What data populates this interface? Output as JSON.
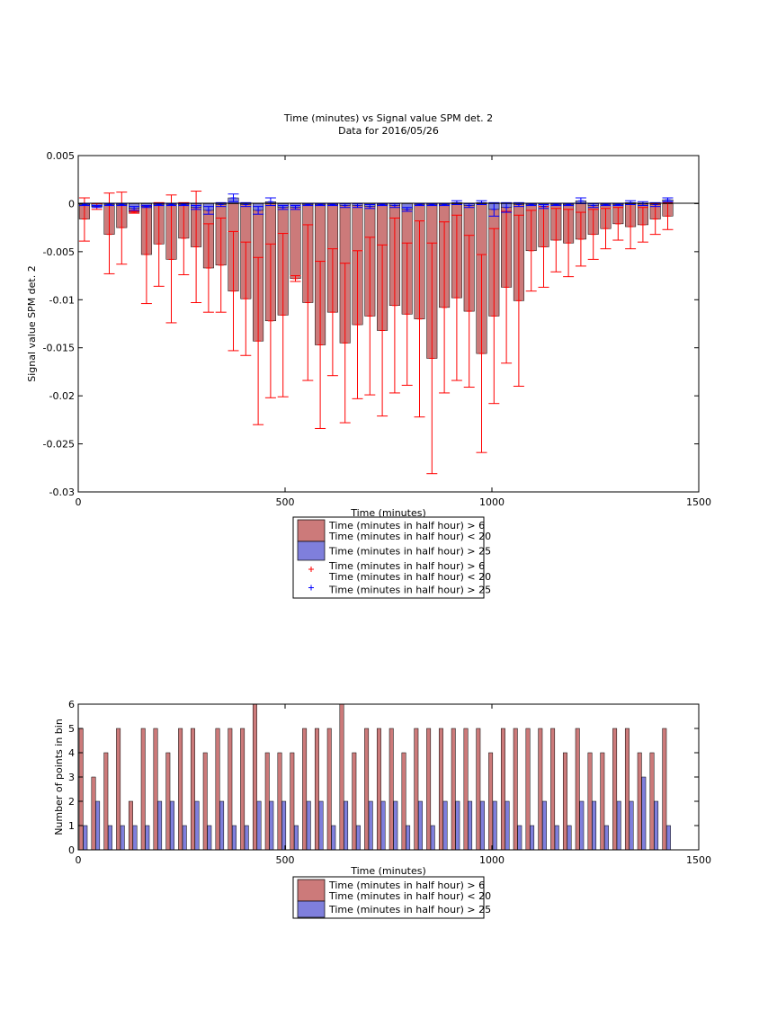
{
  "chart_data": [
    {
      "type": "bar",
      "title": "Time (minutes) vs Signal value SPM det. 2",
      "subtitle": "Data for 2016/05/26",
      "xlabel": "Time (minutes)",
      "ylabel": "Signal value SPM det. 2",
      "xlim": [
        0,
        1500
      ],
      "ylim": [
        -0.03,
        0.005
      ],
      "xticks": [
        0,
        500,
        1000,
        1500
      ],
      "xtick_labels": [
        "0",
        "500",
        "1000",
        "1500"
      ],
      "yticks": [
        0.005,
        0,
        -0.005,
        -0.01,
        -0.015,
        -0.02,
        -0.025,
        -0.03
      ],
      "ytick_labels": [
        "0.005",
        "0",
        "-0.005",
        "-0.01",
        "-0.015",
        "-0.02",
        "-0.025",
        "-0.03"
      ],
      "grid": false,
      "legend_position": "below",
      "legend": [
        {
          "marker": "patch",
          "color": "#cc7a7a",
          "label1": "Time (minutes in half hour) > 6",
          "label2": "Time (minutes in half hour) < 20"
        },
        {
          "marker": "patch",
          "color": "#7f7fdc",
          "label1": "Time (minutes in half hour) > 25",
          "label2": ""
        },
        {
          "marker": "plus",
          "color": "#ff0000",
          "label1": "Time (minutes in half hour) > 6",
          "label2": "Time (minutes in half hour) < 20"
        },
        {
          "marker": "plus",
          "color": "#0000ff",
          "label1": "Time (minutes in half hour) > 25",
          "label2": ""
        }
      ],
      "series": [
        {
          "color": "#cc7a7a",
          "error_color": "#ff0000",
          "x": [
            15,
            45,
            75,
            105,
            135,
            165,
            195,
            225,
            255,
            285,
            315,
            345,
            375,
            405,
            435,
            465,
            495,
            525,
            555,
            585,
            615,
            645,
            675,
            705,
            735,
            765,
            795,
            825,
            855,
            885,
            915,
            945,
            975,
            1005,
            1035,
            1065,
            1095,
            1125,
            1155,
            1185,
            1215,
            1245,
            1275,
            1305,
            1335,
            1365,
            1395,
            1425
          ],
          "values": [
            -0.0016,
            -0.0003,
            -0.0032,
            -0.0025,
            -0.0009,
            -0.0053,
            -0.0042,
            -0.0058,
            -0.0036,
            -0.0045,
            -0.0067,
            -0.0064,
            -0.0091,
            -0.0099,
            -0.0143,
            -0.0122,
            -0.0116,
            -0.0078,
            -0.0103,
            -0.0147,
            -0.0113,
            -0.0145,
            -0.0126,
            -0.0117,
            -0.0132,
            -0.0106,
            -0.0115,
            -0.012,
            -0.0161,
            -0.0108,
            -0.0098,
            -0.0112,
            -0.0156,
            -0.0117,
            -0.0087,
            -0.0101,
            -0.0049,
            -0.0045,
            -0.0038,
            -0.0041,
            -0.0037,
            -0.0032,
            -0.0026,
            -0.0021,
            -0.0024,
            -0.0022,
            -0.0016,
            -0.0013
          ],
          "err_low": [
            -0.0039,
            -0.0006,
            -0.0073,
            -0.0063,
            -0.001,
            -0.0104,
            -0.0086,
            -0.0124,
            -0.0074,
            -0.0103,
            -0.0113,
            -0.0113,
            -0.0153,
            -0.0158,
            -0.023,
            -0.0202,
            -0.0201,
            -0.0081,
            -0.0184,
            -0.0234,
            -0.0179,
            -0.0228,
            -0.0203,
            -0.0199,
            -0.0221,
            -0.0197,
            -0.0189,
            -0.0222,
            -0.0281,
            -0.0197,
            -0.0184,
            -0.0191,
            -0.0259,
            -0.0208,
            -0.0166,
            -0.019,
            -0.0091,
            -0.0087,
            -0.0071,
            -0.0076,
            -0.0065,
            -0.0058,
            -0.0047,
            -0.0038,
            -0.0047,
            -0.004,
            -0.0032,
            -0.0027
          ],
          "err_high": [
            0.0006,
            0.0,
            0.0011,
            0.0012,
            -0.0008,
            -0.0002,
            0.0001,
            0.0009,
            0.0001,
            0.0013,
            -0.0021,
            -0.0015,
            -0.0029,
            -0.004,
            -0.0056,
            -0.0042,
            -0.0031,
            -0.0075,
            -0.0022,
            -0.006,
            -0.0047,
            -0.0062,
            -0.0049,
            -0.0035,
            -0.0043,
            -0.0015,
            -0.0041,
            -0.0018,
            -0.0041,
            -0.0019,
            -0.0012,
            -0.0033,
            -0.0053,
            -0.0026,
            -0.0008,
            -0.0012,
            -0.0007,
            -0.0003,
            -0.0005,
            -0.0006,
            -0.0009,
            -0.0006,
            -0.0005,
            -0.0004,
            -0.0001,
            -0.0004,
            -0.0,
            0.0001
          ]
        },
        {
          "color": "#7f7fdc",
          "error_color": "#0000ff",
          "x": [
            15,
            45,
            75,
            105,
            135,
            165,
            195,
            225,
            255,
            285,
            315,
            345,
            375,
            405,
            435,
            465,
            495,
            525,
            555,
            585,
            615,
            645,
            675,
            705,
            735,
            765,
            795,
            825,
            855,
            885,
            915,
            945,
            975,
            1005,
            1035,
            1065,
            1095,
            1125,
            1155,
            1185,
            1215,
            1245,
            1275,
            1305,
            1335,
            1365,
            1395,
            1425
          ],
          "values": [
            -0.0001,
            -0.0003,
            -0.0001,
            -0.0001,
            -0.0005,
            -0.0003,
            -0.0001,
            -0.0001,
            -0.0001,
            -0.0004,
            -0.0007,
            -0.0001,
            0.0006,
            -0.0001,
            -0.0007,
            0.0002,
            -0.0004,
            -0.0004,
            -0.0001,
            -0.0001,
            -0.0001,
            -0.0002,
            -0.0002,
            -0.0003,
            -0.0001,
            -0.0002,
            -0.0006,
            -0.0001,
            -0.0001,
            -0.0001,
            0.0001,
            -0.0002,
            0.0001,
            -0.0006,
            -0.0004,
            -0.0001,
            -0.0001,
            -0.0003,
            -0.0001,
            -0.0001,
            0.0003,
            -0.0002,
            -0.0001,
            -0.0001,
            0.0001,
            0.0,
            -0.0001,
            0.0004
          ],
          "err_low": [
            -0.0002,
            -0.0004,
            -0.0002,
            -0.0002,
            -0.0007,
            -0.0004,
            -0.0002,
            -0.0002,
            -0.0002,
            -0.0006,
            -0.0011,
            -0.0003,
            0.0002,
            -0.0003,
            -0.0011,
            -0.0002,
            -0.0006,
            -0.0006,
            -0.0002,
            -0.0002,
            -0.0002,
            -0.0004,
            -0.0004,
            -0.0005,
            -0.0002,
            -0.0004,
            -0.0008,
            -0.0002,
            -0.0002,
            -0.0002,
            -0.0001,
            -0.0004,
            -0.0001,
            -0.0013,
            -0.0009,
            -0.0003,
            -0.0002,
            -0.0005,
            -0.0002,
            -0.0002,
            0.0,
            -0.0004,
            -0.0002,
            -0.0002,
            -0.0001,
            -0.0002,
            -0.0003,
            0.0002
          ],
          "err_high": [
            0.0,
            -0.0002,
            0.0,
            0.0,
            -0.0003,
            -0.0002,
            0.0,
            0.0,
            0.0,
            -0.0002,
            -0.0003,
            0.0001,
            0.001,
            0.0001,
            -0.0003,
            0.0006,
            -0.0002,
            -0.0002,
            0.0,
            0.0,
            0.0,
            0.0,
            0.0,
            -0.0001,
            0.0,
            0.0,
            -0.0004,
            0.0,
            0.0,
            0.0,
            0.0003,
            0.0,
            0.0003,
            0.0001,
            0.0001,
            0.0001,
            0.0,
            -0.0001,
            0.0,
            0.0,
            0.0006,
            0.0,
            0.0,
            0.0,
            0.0003,
            0.0002,
            0.0001,
            0.0006
          ]
        }
      ]
    },
    {
      "type": "bar",
      "title": "",
      "xlabel": "Time (minutes)",
      "ylabel": "Number of points in bin",
      "xlim": [
        0,
        1500
      ],
      "ylim": [
        0,
        6
      ],
      "xticks": [
        0,
        500,
        1000,
        1500
      ],
      "xtick_labels": [
        "0",
        "500",
        "1000",
        "1500"
      ],
      "yticks": [
        0,
        1,
        2,
        3,
        4,
        5,
        6
      ],
      "ytick_labels": [
        "0",
        "1",
        "2",
        "3",
        "4",
        "5",
        "6"
      ],
      "grid": false,
      "legend_position": "below",
      "legend": [
        {
          "marker": "patch",
          "color": "#cc7a7a",
          "label1": "Time (minutes in half hour) > 6",
          "label2": "Time (minutes in half hour) < 20"
        },
        {
          "marker": "patch",
          "color": "#7f7fdc",
          "label1": "Time (minutes in half hour) > 25",
          "label2": ""
        }
      ],
      "series": [
        {
          "color": "#cc7a7a",
          "x": [
            7,
            37,
            67,
            97,
            127,
            157,
            187,
            217,
            247,
            277,
            307,
            337,
            367,
            397,
            427,
            457,
            487,
            517,
            547,
            577,
            607,
            637,
            667,
            697,
            727,
            757,
            787,
            817,
            847,
            877,
            907,
            937,
            967,
            997,
            1027,
            1057,
            1087,
            1117,
            1147,
            1177,
            1207,
            1237,
            1267,
            1297,
            1327,
            1357,
            1387,
            1417
          ],
          "values": [
            5,
            3,
            4,
            5,
            2,
            5,
            5,
            4,
            5,
            5,
            4,
            5,
            5,
            5,
            6,
            4,
            4,
            4,
            5,
            5,
            5,
            6,
            4,
            5,
            5,
            5,
            4,
            5,
            5,
            5,
            5,
            5,
            5,
            4,
            5,
            5,
            5,
            5,
            5,
            4,
            5,
            4,
            4,
            5,
            5,
            4,
            4,
            5
          ]
        },
        {
          "color": "#7f7fdc",
          "x": [
            17,
            47,
            77,
            107,
            137,
            167,
            197,
            227,
            257,
            287,
            317,
            347,
            377,
            407,
            437,
            467,
            497,
            527,
            557,
            587,
            617,
            647,
            677,
            707,
            737,
            767,
            797,
            827,
            857,
            887,
            917,
            947,
            977,
            1007,
            1037,
            1067,
            1097,
            1127,
            1157,
            1187,
            1217,
            1247,
            1277,
            1307,
            1337,
            1367,
            1397,
            1427
          ],
          "values": [
            1,
            2,
            1,
            1,
            1,
            1,
            2,
            2,
            1,
            2,
            1,
            2,
            1,
            1,
            2,
            2,
            2,
            1,
            2,
            2,
            1,
            2,
            1,
            2,
            2,
            2,
            1,
            2,
            1,
            2,
            2,
            2,
            2,
            2,
            2,
            1,
            1,
            2,
            1,
            1,
            2,
            2,
            1,
            2,
            2,
            3,
            2,
            1
          ]
        }
      ]
    }
  ]
}
